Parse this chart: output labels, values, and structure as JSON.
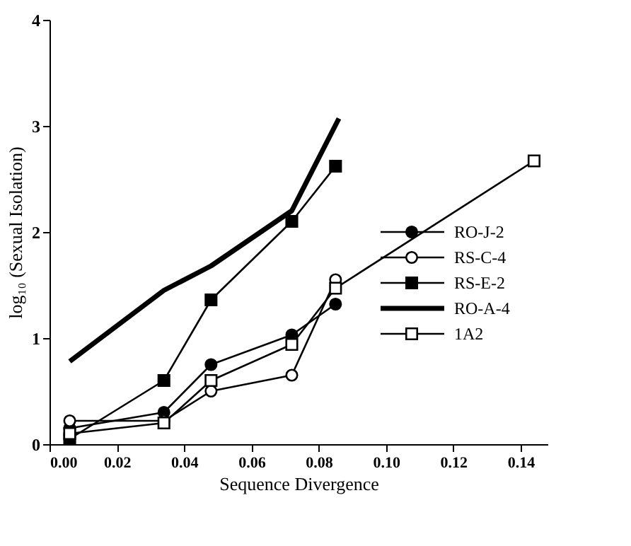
{
  "chart_data": {
    "type": "line",
    "xlabel": "Sequence Divergence",
    "ylabel": "log₁₀ (Sexual Isolation)",
    "xlim": [
      0,
      0.148
    ],
    "ylim": [
      0,
      4
    ],
    "xticks": [
      {
        "value": 0,
        "label": "0.00"
      },
      {
        "value": 0.02,
        "label": "0.02"
      },
      {
        "value": 0.04,
        "label": "0.04"
      },
      {
        "value": 0.06,
        "label": "0.06"
      },
      {
        "value": 0.08,
        "label": "0.08"
      },
      {
        "value": 0.1,
        "label": "0.10"
      },
      {
        "value": 0.12,
        "label": "0.12"
      },
      {
        "value": 0.14,
        "label": "0.14"
      }
    ],
    "yticks": [
      0,
      1,
      2,
      3,
      4
    ],
    "grid": false,
    "legend": "right",
    "line_style": "solid",
    "series": [
      {
        "name": "RO-J-2",
        "color": "#000000",
        "marker": "circle",
        "x": [
          0.006,
          0.034,
          0.048,
          0.072,
          0.085
        ],
        "values": [
          0.15,
          0.3,
          0.75,
          1.03,
          1.32
        ]
      },
      {
        "name": "RS-C-4",
        "color": "#000000",
        "marker": "circle-open",
        "x": [
          0.006,
          0.034,
          0.048,
          0.072,
          0.085
        ],
        "values": [
          0.22,
          0.22,
          0.5,
          0.65,
          1.55
        ]
      },
      {
        "name": "RS-E-2",
        "color": "#000000",
        "marker": "square",
        "x": [
          0.006,
          0.034,
          0.048,
          0.072,
          0.085
        ],
        "values": [
          0.05,
          0.6,
          1.36,
          2.1,
          2.62
        ]
      },
      {
        "name": "RO-A-4",
        "color": "#000000",
        "marker": "none",
        "x": [
          0.006,
          0.034,
          0.048,
          0.072,
          0.086
        ],
        "values": [
          0.78,
          1.45,
          1.68,
          2.2,
          3.07
        ]
      },
      {
        "name": "1A2",
        "color": "#000000",
        "marker": "square-open",
        "x": [
          0.006,
          0.034,
          0.048,
          0.072,
          0.085,
          0.144
        ],
        "values": [
          0.1,
          0.2,
          0.6,
          0.94,
          1.47,
          2.67
        ]
      }
    ]
  }
}
